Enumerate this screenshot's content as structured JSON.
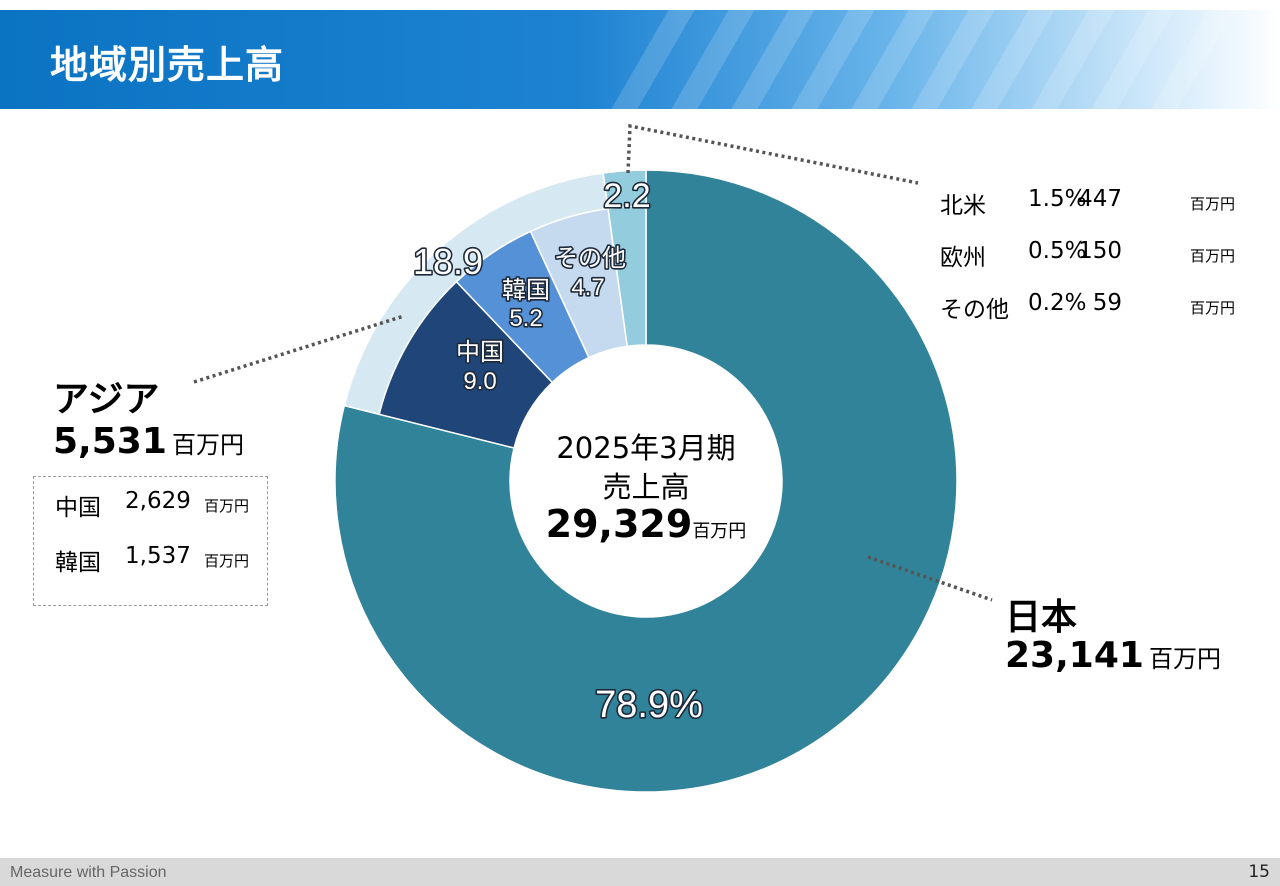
{
  "header": {
    "title": "地域別売上高"
  },
  "center": {
    "line1": "2025年3月期",
    "line2": "売上高",
    "total": "29,329",
    "unit": "百万円"
  },
  "chart_data": {
    "type": "pie",
    "title": "地域別売上高",
    "outer_ring": [
      {
        "name": "日本",
        "value": 78.9,
        "label": "78.9%",
        "color": "#31839a"
      },
      {
        "name": "アジア",
        "value": 18.9,
        "label": "18.9",
        "color": "#d6e8f2"
      },
      {
        "name": "その他",
        "value": 2.2,
        "label": "2.2",
        "color": "#93cddd"
      }
    ],
    "inner_ring": [
      {
        "name": "中国",
        "value": 9.0,
        "label": "9.0",
        "color": "#1f4579"
      },
      {
        "name": "韓国",
        "value": 5.2,
        "label": "5.2",
        "color": "#5591d6"
      },
      {
        "name": "その他",
        "value": 4.7,
        "label": "4.7",
        "color": "#c5d9ef"
      }
    ]
  },
  "labels": {
    "japan": {
      "name": "日本",
      "value": "23,141",
      "unit": "百万円"
    },
    "asia": {
      "name": "アジア",
      "value": "5,531",
      "unit": "百万円"
    },
    "asia_breakdown": [
      {
        "name": "中国",
        "value": "2,629",
        "unit": "百万円"
      },
      {
        "name": "韓国",
        "value": "1,537",
        "unit": "百万円"
      }
    ],
    "other_breakdown": [
      {
        "name": "北米",
        "pct": "1.5%",
        "value": "447",
        "unit": "百万円"
      },
      {
        "name": "欧州",
        "pct": "0.5%",
        "value": "150",
        "unit": "百万円"
      },
      {
        "name": "その他",
        "pct": "0.2%",
        "value": "59",
        "unit": "百万円"
      }
    ]
  },
  "footer": {
    "text": "Measure with Passion",
    "page": "15"
  }
}
